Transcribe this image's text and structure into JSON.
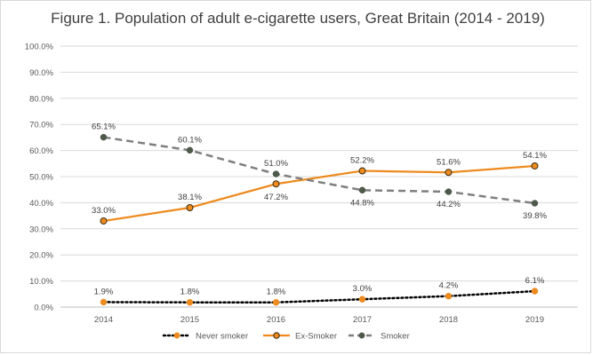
{
  "chart_data": {
    "type": "line",
    "title": "Figure 1. Population of adult e-cigarette users, Great Britain (2014 - 2019)",
    "xlabel": "",
    "ylabel": "",
    "categories": [
      "2014",
      "2015",
      "2016",
      "2017",
      "2018",
      "2019"
    ],
    "ylim": [
      0,
      100
    ],
    "yticks": [
      "0.0%",
      "10.0%",
      "20.0%",
      "30.0%",
      "40.0%",
      "50.0%",
      "60.0%",
      "70.0%",
      "80.0%",
      "90.0%",
      "100.0%"
    ],
    "grid": true,
    "legend_position": "bottom",
    "series": [
      {
        "name": "Never smoker",
        "values": [
          1.9,
          1.8,
          1.8,
          3.0,
          4.2,
          6.1
        ],
        "labels": [
          "1.9%",
          "1.8%",
          "1.8%",
          "3.0%",
          "4.2%",
          "6.1%"
        ],
        "color": "#000000",
        "marker": "#ed8b1f",
        "style": "dotted"
      },
      {
        "name": "Ex-Smoker",
        "values": [
          33.0,
          38.1,
          47.2,
          52.2,
          51.6,
          54.1
        ],
        "labels": [
          "33.0%",
          "38.1%",
          "47.2%",
          "52.2%",
          "51.6%",
          "54.1%"
        ],
        "color": "#ed8b1f",
        "marker": "#ed8b1f",
        "style": "solid"
      },
      {
        "name": "Smoker",
        "values": [
          65.1,
          60.1,
          51.0,
          44.8,
          44.2,
          39.8
        ],
        "labels": [
          "65.1%",
          "60.1%",
          "51.0%",
          "44.8%",
          "44.2%",
          "39.8%"
        ],
        "color": "#7f7f7f",
        "marker": "#4d5a4a",
        "style": "dashed"
      }
    ]
  }
}
